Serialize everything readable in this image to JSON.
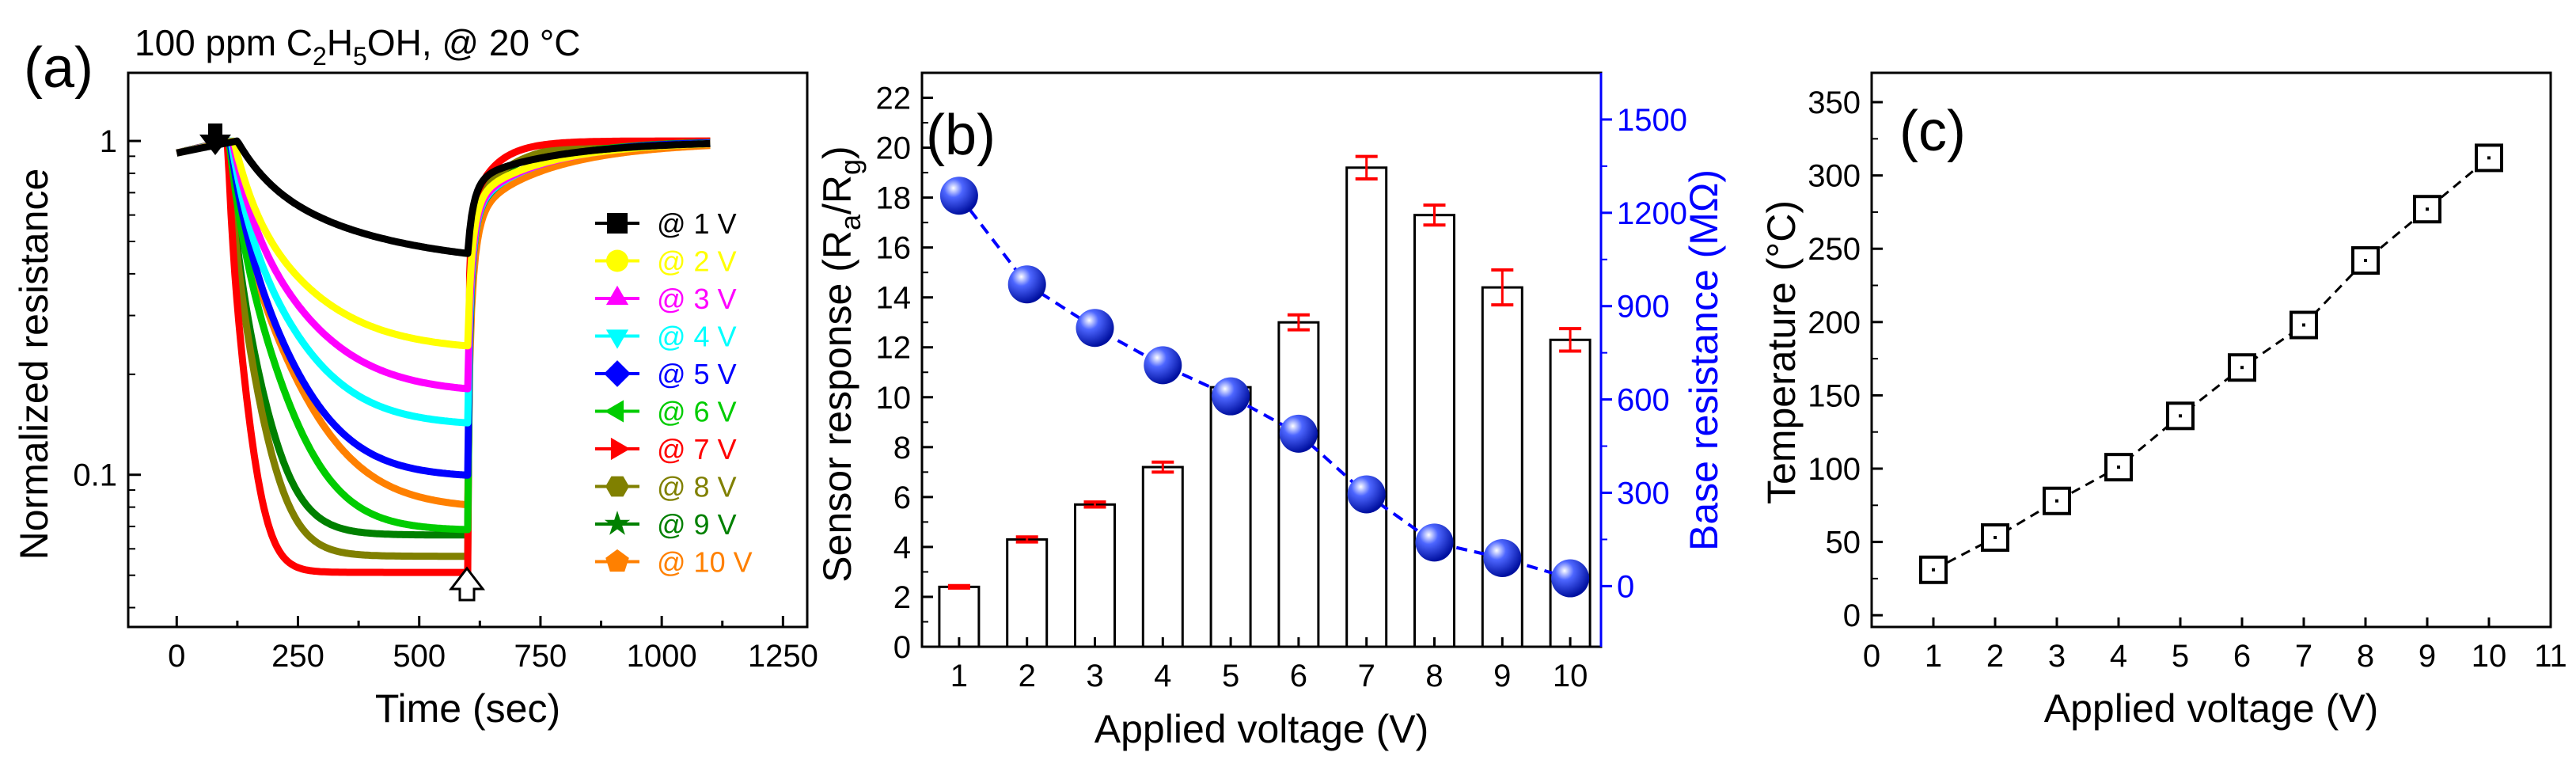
{
  "panel_a_title_parts": [
    "100 ppm C",
    "2",
    "H",
    "5",
    "OH, @ 20 °C"
  ],
  "chart_data": [
    {
      "panel": "(a)",
      "type": "line",
      "title": "100 ppm C2H5OH, @ 20 °C",
      "xlabel": "Time (sec)",
      "ylabel": "Normalized resistance",
      "xlim": [
        -100,
        1300
      ],
      "ylim": [
        0.035,
        1.6
      ],
      "yscale": "log",
      "xticks": [
        "0",
        "250",
        "500",
        "750",
        "1000",
        "1250"
      ],
      "yticks": [
        "0.1",
        "1"
      ],
      "legend_position": "right",
      "gas_in_marker": "filled-down-arrow",
      "gas_out_marker": "hollow-up-arrow",
      "series": [
        {
          "name": "@ 1 V",
          "color": "#000000",
          "marker": "square",
          "t_on": 125,
          "min": 0.42,
          "tau1": 220,
          "tau2": 120
        },
        {
          "name": "@ 2 V",
          "color": "#ffff00",
          "marker": "circle",
          "t_on": 118,
          "min": 0.235,
          "tau1": 120,
          "tau2": 110
        },
        {
          "name": "@ 3 V",
          "color": "#ff00ff",
          "marker": "triangle",
          "t_on": 115,
          "min": 0.175,
          "tau1": 110,
          "tau2": 105
        },
        {
          "name": "@ 4 V",
          "color": "#00ffff",
          "marker": "tri-down",
          "t_on": 112,
          "min": 0.14,
          "tau1": 95,
          "tau2": 100
        },
        {
          "name": "@ 5 V",
          "color": "#0000ff",
          "marker": "diamond",
          "t_on": 110,
          "min": 0.098,
          "tau1": 85,
          "tau2": 90
        },
        {
          "name": "@ 6 V",
          "color": "#00cc00",
          "marker": "tri-left",
          "t_on": 108,
          "min": 0.068,
          "tau1": 70,
          "tau2": 85
        },
        {
          "name": "@ 7 V",
          "color": "#ff0000",
          "marker": "tri-right",
          "t_on": 105,
          "min": 0.051,
          "tau1": 25,
          "tau2": 35
        },
        {
          "name": "@ 8 V",
          "color": "#808000",
          "marker": "hexagon",
          "t_on": 105,
          "min": 0.057,
          "tau1": 40,
          "tau2": 55
        },
        {
          "name": "@ 9 V",
          "color": "#008000",
          "marker": "star",
          "t_on": 105,
          "min": 0.066,
          "tau1": 45,
          "tau2": 60
        },
        {
          "name": "@ 10 V",
          "color": "#ff8000",
          "marker": "pentagon",
          "t_on": 105,
          "min": 0.079,
          "tau1": 90,
          "tau2": 120
        }
      ]
    },
    {
      "panel": "(b)",
      "type": "bar",
      "xlabel": "Applied voltage (V)",
      "ylabel_parts": [
        "Sensor response (R",
        "a",
        "/R",
        "g",
        ")"
      ],
      "y2label": "Base resistance (MΩ)",
      "categories": [
        "1",
        "2",
        "3",
        "4",
        "5",
        "6",
        "7",
        "8",
        "9",
        "10"
      ],
      "ylim": [
        0,
        23
      ],
      "yticks": [
        "0",
        "2",
        "4",
        "6",
        "8",
        "10",
        "12",
        "14",
        "16",
        "18",
        "20",
        "22"
      ],
      "y2lim": [
        -195,
        1650
      ],
      "y2ticks": [
        "0",
        "300",
        "600",
        "900",
        "1200",
        "1500"
      ],
      "series": [
        {
          "name": "Sensor response",
          "kind": "bar",
          "values": [
            2.4,
            4.3,
            5.7,
            7.2,
            10.4,
            13.0,
            19.2,
            17.3,
            14.4,
            12.3
          ],
          "errors": [
            0.05,
            0.1,
            0.1,
            0.2,
            0.1,
            0.3,
            0.45,
            0.4,
            0.7,
            0.45
          ],
          "error_color": "#ff0000"
        },
        {
          "name": "Base resistance",
          "kind": "line",
          "axis": "right",
          "color": "#0000ff",
          "values": [
            1255,
            970,
            830,
            710,
            610,
            490,
            295,
            140,
            90,
            25
          ]
        }
      ]
    },
    {
      "panel": "(c)",
      "type": "line",
      "xlabel": "Applied voltage (V)",
      "ylabel": "Temperature (°C)",
      "xlim": [
        0,
        11
      ],
      "ylim": [
        -8,
        370
      ],
      "xticks": [
        "0",
        "1",
        "2",
        "3",
        "4",
        "5",
        "6",
        "7",
        "8",
        "9",
        "10",
        "11"
      ],
      "yticks": [
        "0",
        "50",
        "100",
        "150",
        "200",
        "250",
        "300",
        "350"
      ],
      "x": [
        1,
        2,
        3,
        4,
        5,
        6,
        7,
        8,
        9,
        10
      ],
      "y": [
        31,
        53,
        78,
        101,
        136,
        169,
        198,
        242,
        277,
        312
      ]
    }
  ]
}
